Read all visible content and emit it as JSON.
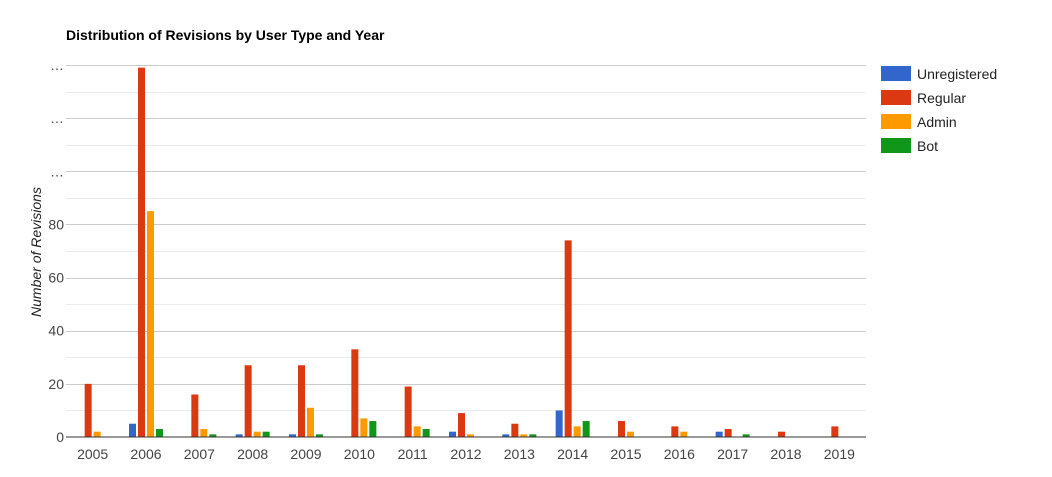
{
  "chart_data": {
    "type": "bar",
    "title": "Distribution of Revisions by User Type and Year",
    "xlabel": "",
    "ylabel": "Number of Revisions",
    "categories": [
      "2005",
      "2006",
      "2007",
      "2008",
      "2009",
      "2010",
      "2011",
      "2012",
      "2013",
      "2014",
      "2015",
      "2016",
      "2017",
      "2018",
      "2019"
    ],
    "series": [
      {
        "name": "Unregistered",
        "color": "#3366cc",
        "values": [
          0,
          5,
          0,
          1,
          1,
          0,
          0,
          2,
          1,
          10,
          0,
          0,
          2,
          0,
          0
        ]
      },
      {
        "name": "Regular",
        "color": "#dc3912",
        "values": [
          20,
          139,
          16,
          27,
          27,
          33,
          19,
          9,
          5,
          74,
          6,
          4,
          3,
          2,
          4
        ]
      },
      {
        "name": "Admin",
        "color": "#ff9900",
        "values": [
          2,
          85,
          3,
          2,
          11,
          7,
          4,
          1,
          1,
          4,
          2,
          2,
          0,
          0,
          0
        ]
      },
      {
        "name": "Bot",
        "color": "#109618",
        "values": [
          0,
          3,
          1,
          2,
          1,
          6,
          3,
          0,
          1,
          6,
          0,
          0,
          1,
          0,
          0
        ]
      }
    ],
    "y_ticks": [
      "0",
      "20",
      "40",
      "60",
      "80",
      "…",
      "…",
      "…"
    ],
    "ylim": [
      0,
      140
    ],
    "grid": true,
    "legend": "right"
  }
}
